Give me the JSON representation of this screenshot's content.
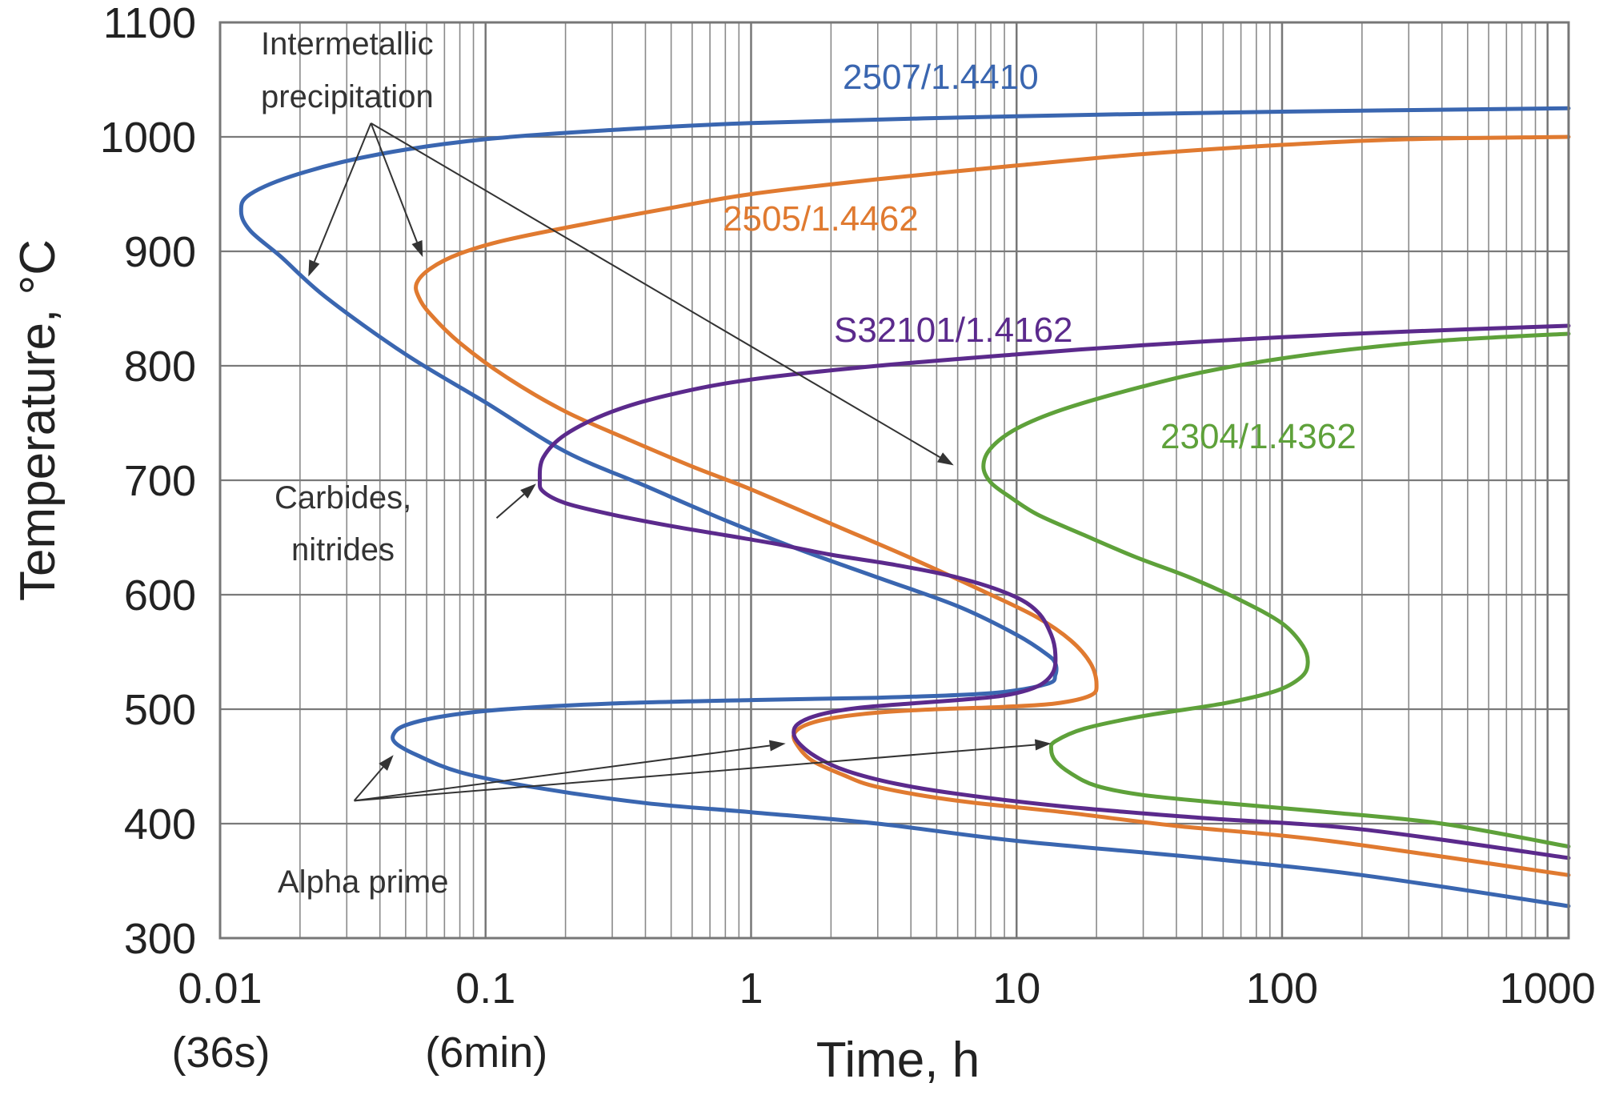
{
  "chart_data": {
    "type": "line",
    "title": "",
    "xlabel": "Time, h",
    "ylabel": "Temperature, °C",
    "x_scale": "log",
    "xlim": [
      0.01,
      1200
    ],
    "ylim": [
      300,
      1100
    ],
    "grid": true,
    "x_ticks": [
      {
        "value": 0.01,
        "label": "0.01",
        "sublabel": "(36s)"
      },
      {
        "value": 0.1,
        "label": "0.1",
        "sublabel": "(6min)"
      },
      {
        "value": 1,
        "label": "1",
        "sublabel": ""
      },
      {
        "value": 10,
        "label": "10",
        "sublabel": ""
      },
      {
        "value": 100,
        "label": "100",
        "sublabel": ""
      },
      {
        "value": 1000,
        "label": "1000",
        "sublabel": ""
      }
    ],
    "y_ticks": [
      300,
      400,
      500,
      600,
      700,
      800,
      900,
      1000,
      1100
    ],
    "series": [
      {
        "name": "2507/1.4410",
        "color": "#3a66b0",
        "points": [
          [
            1200,
            1025
          ],
          [
            100,
            1022
          ],
          [
            10,
            1018
          ],
          [
            1,
            1012
          ],
          [
            0.3,
            1006
          ],
          [
            0.1,
            998
          ],
          [
            0.04,
            985
          ],
          [
            0.02,
            968
          ],
          [
            0.013,
            950
          ],
          [
            0.012,
            935
          ],
          [
            0.013,
            918
          ],
          [
            0.017,
            895
          ],
          [
            0.025,
            860
          ],
          [
            0.05,
            810
          ],
          [
            0.1,
            768
          ],
          [
            0.2,
            725
          ],
          [
            0.4,
            695
          ],
          [
            0.8,
            665
          ],
          [
            1.5,
            640
          ],
          [
            3,
            615
          ],
          [
            6,
            590
          ],
          [
            10,
            565
          ],
          [
            13,
            548
          ],
          [
            14,
            540
          ],
          [
            14,
            530
          ],
          [
            13,
            522
          ],
          [
            8,
            514
          ],
          [
            3,
            510
          ],
          [
            1,
            508
          ],
          [
            0.3,
            505
          ],
          [
            0.12,
            500
          ],
          [
            0.07,
            494
          ],
          [
            0.05,
            486
          ],
          [
            0.045,
            478
          ],
          [
            0.046,
            470
          ],
          [
            0.055,
            460
          ],
          [
            0.08,
            445
          ],
          [
            0.15,
            432
          ],
          [
            0.4,
            418
          ],
          [
            1,
            410
          ],
          [
            3,
            400
          ],
          [
            10,
            385
          ],
          [
            50,
            370
          ],
          [
            200,
            355
          ],
          [
            1200,
            328
          ]
        ]
      },
      {
        "name": "2505/1.4462",
        "color": "#e07a30",
        "points": [
          [
            1200,
            1000
          ],
          [
            300,
            998
          ],
          [
            100,
            993
          ],
          [
            30,
            985
          ],
          [
            10,
            975
          ],
          [
            3,
            963
          ],
          [
            1,
            950
          ],
          [
            0.5,
            938
          ],
          [
            0.25,
            925
          ],
          [
            0.12,
            910
          ],
          [
            0.08,
            898
          ],
          [
            0.062,
            885
          ],
          [
            0.055,
            872
          ],
          [
            0.056,
            860
          ],
          [
            0.062,
            845
          ],
          [
            0.08,
            820
          ],
          [
            0.12,
            790
          ],
          [
            0.2,
            760
          ],
          [
            0.35,
            735
          ],
          [
            0.6,
            712
          ],
          [
            1,
            692
          ],
          [
            2,
            662
          ],
          [
            4,
            632
          ],
          [
            8,
            600
          ],
          [
            12,
            580
          ],
          [
            16,
            560
          ],
          [
            19,
            540
          ],
          [
            20,
            522
          ],
          [
            19,
            512
          ],
          [
            14,
            505
          ],
          [
            9,
            502
          ],
          [
            5,
            500
          ],
          [
            3,
            497
          ],
          [
            2,
            492
          ],
          [
            1.6,
            486
          ],
          [
            1.45,
            478
          ],
          [
            1.5,
            468
          ],
          [
            1.7,
            455
          ],
          [
            2.2,
            443
          ],
          [
            3,
            432
          ],
          [
            6,
            420
          ],
          [
            15,
            410
          ],
          [
            40,
            398
          ],
          [
            150,
            385
          ],
          [
            1200,
            355
          ]
        ]
      },
      {
        "name": "S32101/1.4162",
        "color": "#5b2a8c",
        "points": [
          [
            1200,
            835
          ],
          [
            300,
            830
          ],
          [
            100,
            825
          ],
          [
            30,
            818
          ],
          [
            10,
            810
          ],
          [
            3,
            800
          ],
          [
            1,
            788
          ],
          [
            0.5,
            775
          ],
          [
            0.3,
            760
          ],
          [
            0.2,
            740
          ],
          [
            0.165,
            720
          ],
          [
            0.16,
            700
          ],
          [
            0.165,
            690
          ],
          [
            0.2,
            680
          ],
          [
            0.3,
            670
          ],
          [
            0.5,
            660
          ],
          [
            0.8,
            652
          ],
          [
            1.2,
            645
          ],
          [
            2,
            635
          ],
          [
            3.5,
            626
          ],
          [
            6,
            615
          ],
          [
            9.5,
            600
          ],
          [
            12,
            585
          ],
          [
            13.5,
            565
          ],
          [
            14,
            548
          ],
          [
            13.7,
            532
          ],
          [
            12,
            520
          ],
          [
            9,
            512
          ],
          [
            6,
            508
          ],
          [
            4,
            505
          ],
          [
            2.5,
            501
          ],
          [
            1.8,
            495
          ],
          [
            1.5,
            487
          ],
          [
            1.45,
            478
          ],
          [
            1.55,
            468
          ],
          [
            1.8,
            457
          ],
          [
            2.3,
            446
          ],
          [
            3.5,
            435
          ],
          [
            6,
            426
          ],
          [
            15,
            415
          ],
          [
            50,
            405
          ],
          [
            200,
            395
          ],
          [
            1200,
            370
          ]
        ]
      },
      {
        "name": "2304/1.4362",
        "color": "#5ea13a",
        "points": [
          [
            1200,
            828
          ],
          [
            400,
            822
          ],
          [
            150,
            812
          ],
          [
            60,
            798
          ],
          [
            30,
            782
          ],
          [
            15,
            762
          ],
          [
            10,
            745
          ],
          [
            8,
            728
          ],
          [
            7.5,
            712
          ],
          [
            8,
            698
          ],
          [
            9.5,
            685
          ],
          [
            12,
            670
          ],
          [
            18,
            652
          ],
          [
            28,
            633
          ],
          [
            45,
            615
          ],
          [
            70,
            595
          ],
          [
            100,
            575
          ],
          [
            120,
            555
          ],
          [
            125,
            540
          ],
          [
            118,
            528
          ],
          [
            95,
            516
          ],
          [
            60,
            505
          ],
          [
            30,
            494
          ],
          [
            18,
            483
          ],
          [
            14,
            472
          ],
          [
            13.5,
            465
          ],
          [
            14,
            455
          ],
          [
            16,
            444
          ],
          [
            20,
            433
          ],
          [
            30,
            425
          ],
          [
            60,
            418
          ],
          [
            150,
            410
          ],
          [
            400,
            400
          ],
          [
            1200,
            380
          ]
        ]
      }
    ],
    "series_labels": [
      {
        "text": "2507/1.4410",
        "color": "#3a66b0"
      },
      {
        "text": "2505/1.4462",
        "color": "#e07a30"
      },
      {
        "text": "S32101/1.4162",
        "color": "#5b2a8c"
      },
      {
        "text": "2304/1.4362",
        "color": "#5ea13a"
      }
    ],
    "annotations": [
      {
        "lines": [
          "Intermetallic",
          "precipitation"
        ]
      },
      {
        "lines": [
          "Carbides,",
          "nitrides"
        ]
      },
      {
        "lines": [
          "Alpha prime"
        ]
      }
    ],
    "arrows": [
      {
        "from": [
          0.037,
          1012
        ],
        "to": [
          0.0215,
          878
        ]
      },
      {
        "from": [
          0.037,
          1012
        ],
        "to": [
          0.058,
          895
        ]
      },
      {
        "from": [
          0.037,
          1012
        ],
        "to": [
          5.8,
          713
        ]
      },
      {
        "from": [
          0.11,
          667
        ],
        "to": [
          0.155,
          697
        ]
      },
      {
        "from": [
          0.032,
          420
        ],
        "to": [
          0.045,
          460
        ]
      },
      {
        "from": [
          0.032,
          420
        ],
        "to": [
          1.35,
          470
        ]
      },
      {
        "from": [
          0.032,
          420
        ],
        "to": [
          13.5,
          470
        ]
      }
    ]
  }
}
